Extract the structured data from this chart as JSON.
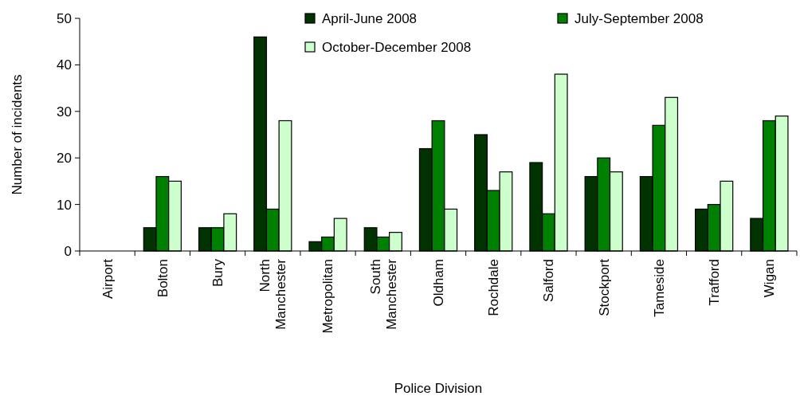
{
  "chart_data": {
    "type": "bar",
    "xlabel": "Police Division",
    "ylabel": "Number of incidents",
    "categories": [
      "Airport",
      "Bolton",
      "Bury",
      "North Manchester",
      "Metropolitan",
      "South Manchester",
      "Oldham",
      "Rochdale",
      "Salford",
      "Stockport",
      "Tameside",
      "Trafford",
      "Wigan"
    ],
    "series": [
      {
        "name": "April-June 2008",
        "color": "#003300",
        "values": [
          0,
          5,
          5,
          46,
          2,
          5,
          22,
          25,
          19,
          16,
          16,
          9,
          7
        ]
      },
      {
        "name": "July-September 2008",
        "color": "#008000",
        "values": [
          0,
          16,
          5,
          9,
          3,
          3,
          28,
          13,
          8,
          20,
          27,
          10,
          28
        ]
      },
      {
        "name": "October-December 2008",
        "color": "#ccffcc",
        "values": [
          0,
          15,
          8,
          28,
          7,
          4,
          9,
          17,
          38,
          17,
          33,
          15,
          29
        ]
      }
    ],
    "ylim": [
      0,
      50
    ],
    "yticks": [
      0,
      10,
      20,
      30,
      40,
      50
    ],
    "grid": false,
    "legend": "top right"
  }
}
